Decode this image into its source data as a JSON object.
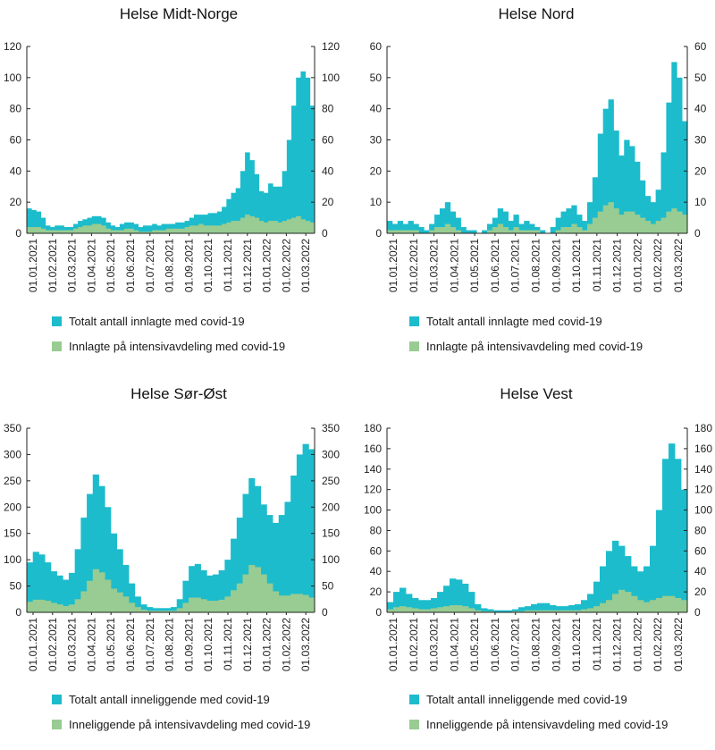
{
  "colors": {
    "total": "#1cbccc",
    "icu": "#98cc92",
    "axis": "#222222"
  },
  "chart_data": [
    {
      "type": "bar",
      "title": "Helse Midt-Norge",
      "ylim": [
        0,
        120
      ],
      "yticks": [
        0,
        20,
        40,
        60,
        80,
        100,
        120
      ],
      "xticks": [
        "01.01.2021",
        "01.02.2021",
        "01.03.2021",
        "01.04.2021",
        "01.05.2021",
        "01.06.2021",
        "01.07.2021",
        "01.08.2021",
        "01.09.2021",
        "01.10.2021",
        "01.11.2021",
        "01.12.2021",
        "01.01.2022",
        "01.02.2022",
        "01.03.2022"
      ],
      "series": [
        {
          "name": "Totalt antall innlagte med covid-19",
          "color_key": "total",
          "values": [
            16,
            15,
            14,
            10,
            5,
            4,
            5,
            5,
            4,
            4,
            6,
            8,
            9,
            10,
            11,
            11,
            10,
            7,
            5,
            4,
            6,
            7,
            7,
            6,
            4,
            5,
            5,
            6,
            5,
            6,
            6,
            6,
            7,
            7,
            8,
            10,
            12,
            12,
            12,
            13,
            13,
            14,
            17,
            22,
            26,
            29,
            40,
            52,
            47,
            38,
            27,
            26,
            32,
            30,
            30,
            40,
            60,
            82,
            100,
            104,
            100,
            82
          ]
        },
        {
          "name": "Innlagte på intensivavdeling med covid-19",
          "color_key": "icu",
          "values": [
            4,
            4,
            4,
            3,
            2,
            2,
            2,
            2,
            2,
            2,
            3,
            4,
            5,
            5,
            6,
            6,
            5,
            3,
            2,
            2,
            2,
            3,
            3,
            2,
            1,
            1,
            1,
            2,
            2,
            2,
            3,
            3,
            3,
            3,
            4,
            5,
            5,
            6,
            5,
            5,
            5,
            5,
            6,
            7,
            8,
            8,
            10,
            12,
            11,
            10,
            8,
            7,
            8,
            8,
            7,
            8,
            9,
            10,
            11,
            9,
            8,
            7
          ]
        }
      ]
    },
    {
      "type": "bar",
      "title": "Helse Nord",
      "ylim": [
        0,
        60
      ],
      "yticks": [
        0,
        10,
        20,
        30,
        40,
        50,
        60
      ],
      "xticks": [
        "01.01.2021",
        "01.02.2021",
        "01.03.2021",
        "01.04.2021",
        "01.05.2021",
        "01.06.2021",
        "01.07.2021",
        "01.08.2021",
        "01.09.2021",
        "01.10.2021",
        "01.11.2021",
        "01.12.2021",
        "01.01.2022",
        "01.02.2022",
        "01.03.2022"
      ],
      "series": [
        {
          "name": "Totalt antall innlagte med covid-19",
          "color_key": "total",
          "values": [
            4,
            3,
            4,
            3,
            4,
            3,
            2,
            1,
            3,
            6,
            8,
            10,
            7,
            5,
            2,
            1,
            1,
            0,
            1,
            3,
            5,
            8,
            7,
            4,
            6,
            3,
            4,
            3,
            2,
            1,
            0,
            2,
            5,
            7,
            8,
            9,
            6,
            4,
            10,
            18,
            32,
            40,
            43,
            33,
            25,
            30,
            28,
            23,
            17,
            12,
            10,
            14,
            26,
            42,
            55,
            50,
            36
          ]
        },
        {
          "name": "Innlagte på intensivavdeling med covid-19",
          "color_key": "icu",
          "values": [
            1,
            1,
            1,
            1,
            1,
            1,
            0,
            0,
            1,
            2,
            2,
            3,
            2,
            1,
            0,
            0,
            0,
            0,
            0,
            1,
            2,
            3,
            2,
            1,
            2,
            1,
            1,
            1,
            1,
            0,
            0,
            0,
            1,
            2,
            2,
            3,
            2,
            1,
            3,
            5,
            7,
            9,
            10,
            8,
            6,
            7,
            7,
            6,
            5,
            4,
            3,
            4,
            5,
            7,
            8,
            7,
            6
          ]
        }
      ]
    },
    {
      "type": "bar",
      "title": "Helse Sør-Øst",
      "ylim": [
        0,
        350
      ],
      "yticks": [
        0,
        50,
        100,
        150,
        200,
        250,
        300,
        350
      ],
      "xticks": [
        "01.01.2021",
        "01.02.2021",
        "01.03.2021",
        "01.04.2021",
        "01.05.2021",
        "01.06.2021",
        "01.07.2021",
        "01.08.2021",
        "01.09.2021",
        "01.10.2021",
        "01.11.2021",
        "01.12.2021",
        "01.01.2022",
        "01.02.2022",
        "01.03.2022"
      ],
      "series": [
        {
          "name": "Totalt antall inneliggende med covid-19",
          "color_key": "total",
          "values": [
            95,
            115,
            110,
            95,
            78,
            70,
            62,
            75,
            120,
            180,
            225,
            262,
            240,
            200,
            150,
            120,
            90,
            55,
            30,
            15,
            10,
            8,
            8,
            8,
            10,
            25,
            60,
            88,
            92,
            80,
            70,
            72,
            80,
            100,
            140,
            180,
            225,
            255,
            240,
            205,
            185,
            170,
            185,
            210,
            260,
            300,
            320,
            310
          ]
        },
        {
          "name": "Inneliggende på intensivavdeling med covid-19",
          "color_key": "icu",
          "values": [
            20,
            24,
            24,
            22,
            18,
            15,
            12,
            15,
            25,
            40,
            60,
            82,
            76,
            62,
            45,
            38,
            30,
            18,
            10,
            5,
            3,
            3,
            3,
            3,
            3,
            8,
            18,
            28,
            28,
            25,
            22,
            22,
            24,
            30,
            42,
            55,
            72,
            90,
            86,
            72,
            55,
            40,
            32,
            32,
            35,
            35,
            33,
            28
          ]
        }
      ]
    },
    {
      "type": "bar",
      "title": "Helse Vest",
      "ylim": [
        0,
        180
      ],
      "yticks": [
        0,
        20,
        40,
        60,
        80,
        100,
        120,
        140,
        160,
        180
      ],
      "xticks": [
        "01.01.2021",
        "01.02.2021",
        "01.03.2021",
        "01.04.2021",
        "01.05.2021",
        "01.06.2021",
        "01.07.2021",
        "01.08.2021",
        "01.09.2021",
        "01.10.2021",
        "01.11.2021",
        "01.12.2021",
        "01.01.2022",
        "01.02.2022",
        "01.03.2022"
      ],
      "series": [
        {
          "name": "Totalt antall inneliggende med covid-19",
          "color_key": "total",
          "values": [
            10,
            20,
            24,
            18,
            14,
            12,
            12,
            14,
            20,
            26,
            33,
            32,
            28,
            20,
            8,
            4,
            3,
            2,
            2,
            2,
            3,
            5,
            6,
            8,
            9,
            9,
            7,
            6,
            6,
            7,
            8,
            12,
            18,
            30,
            45,
            60,
            70,
            65,
            55,
            45,
            40,
            45,
            65,
            100,
            150,
            165,
            150,
            120
          ]
        },
        {
          "name": "Inneliggende på intensivavdeling med covid-19",
          "color_key": "icu",
          "values": [
            3,
            5,
            6,
            5,
            4,
            3,
            3,
            4,
            5,
            6,
            7,
            7,
            6,
            4,
            2,
            1,
            1,
            0,
            0,
            0,
            1,
            1,
            2,
            2,
            2,
            2,
            2,
            2,
            2,
            2,
            2,
            3,
            4,
            6,
            9,
            12,
            18,
            22,
            20,
            16,
            12,
            10,
            12,
            14,
            16,
            16,
            14,
            12
          ]
        }
      ]
    }
  ]
}
